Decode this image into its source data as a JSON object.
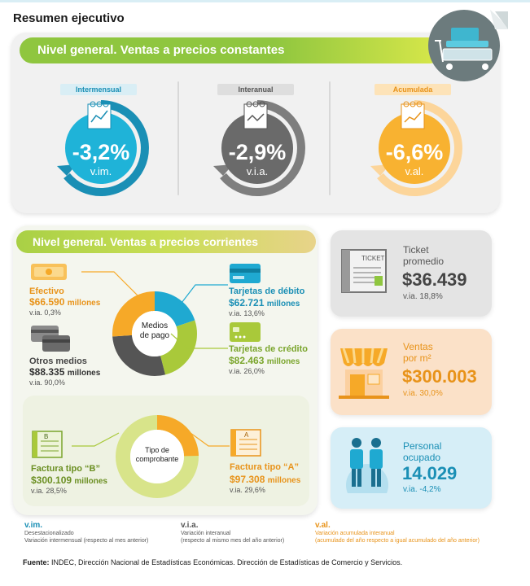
{
  "page_title": "Resumen ejecutivo",
  "constant": {
    "banner_prefix": "Nivel general.",
    "banner_suffix": "Ventas a precios constantes",
    "kpis": [
      {
        "label": "Intermensual",
        "value": "-3,2%",
        "unit": "v.im."
      },
      {
        "label": "Interanual",
        "value": "-2,9%",
        "unit": "v.i.a."
      },
      {
        "label": "Acumulada",
        "value": "-6,6%",
        "unit": "v.al."
      }
    ]
  },
  "current": {
    "banner_prefix": "Nivel general.",
    "banner_suffix": "Ventas a precios corrientes",
    "donut1_label_1": "Medios",
    "donut1_label_2": "de pago",
    "donut2_label_1": "Tipo de",
    "donut2_label_2": "comprobante",
    "efectivo": {
      "label": "Efectivo",
      "amount": "$66.590",
      "unit": "millones",
      "var": "v.ia. 0,3%"
    },
    "otros": {
      "label": "Otros medios",
      "amount": "$88.335",
      "unit": "millones",
      "var": "v.ia. 90,0%"
    },
    "debito": {
      "label": "Tarjetas de débito",
      "amount": "$62.721",
      "unit": "millones",
      "var": "v.ia. 13,6%"
    },
    "credito": {
      "label": "Tarjetas de crédito",
      "amount": "$82.463",
      "unit": "millones",
      "var": "v.ia. 26,0%"
    },
    "factura_b": {
      "label": "Factura tipo “B”",
      "amount": "$300.109",
      "unit": "millones",
      "var": "v.ia. 28,5%",
      "icon_letter": "B"
    },
    "factura_a": {
      "label": "Factura tipo “A”",
      "amount": "$97.308",
      "unit": "millones",
      "var": "v.ia. 29,6%",
      "icon_letter": "A"
    },
    "ticket_icon_text": "TICKET"
  },
  "cards": {
    "ticket": {
      "title_1": "Ticket",
      "title_2": "promedio",
      "value": "$36.439",
      "var": "v.ia. 18,8%"
    },
    "ventas": {
      "title_1": "Ventas",
      "title_2": "por m²",
      "value": "$300.003",
      "var": "v.ia. 30,0%"
    },
    "personal": {
      "title_1": "Personal",
      "title_2": "ocupado",
      "value": "14.029",
      "var": "v.ia. -4,2%"
    }
  },
  "legend": [
    {
      "abbr": "v.im.",
      "line1": "Desestacionalizado",
      "line2": "Variación intermensual (respecto al mes anterior)"
    },
    {
      "abbr": "v.i.a.",
      "line1": "Variación interanual",
      "line2": "(respecto al mismo mes del año anterior)"
    },
    {
      "abbr": "v.al.",
      "line1": "Variación acumulada interanual",
      "line2": "(acumulado del año respecto a igual acumulado del año anterior)"
    }
  ],
  "source_label": "Fuente:",
  "source_text": "INDEC, Dirección Nacional de Estadísticas Económicas. Dirección de Estadísticas de Comercio y Servicios.",
  "colors": {
    "blue": "#1fa9d1",
    "gray": "#6b6b6b",
    "orange": "#f6a928",
    "green": "#8fc63f",
    "lime": "#a9c93a",
    "grey_dark": "#4a4a4a",
    "teal": "#1f8aa8"
  }
}
